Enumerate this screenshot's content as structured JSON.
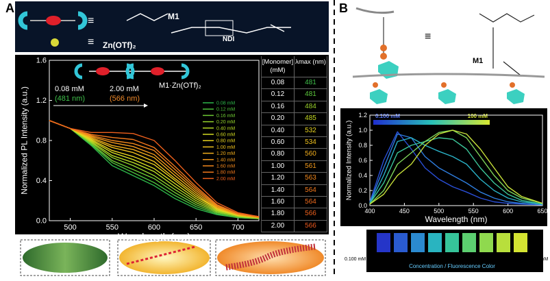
{
  "panel_a": {
    "label": "A",
    "header": {
      "m1": "M1",
      "ndi": "NDI",
      "zn": "Zn(OTf)₂"
    },
    "table": {
      "columns": [
        "[Monomer] (mM)",
        "λmax (nm)"
      ],
      "rows": [
        [
          "0.08",
          481
        ],
        [
          "0.12",
          481
        ],
        [
          "0.16",
          484
        ],
        [
          "0.20",
          485
        ],
        [
          "0.40",
          532
        ],
        [
          "0.60",
          534
        ],
        [
          "0.80",
          560
        ],
        [
          "1.00",
          561
        ],
        [
          "1.20",
          563
        ],
        [
          "1.40",
          564
        ],
        [
          "1.60",
          564
        ],
        [
          "1.80",
          566
        ],
        [
          "2.00",
          566
        ]
      ],
      "colors": [
        "#3fc04a",
        "#5cc83b",
        "#9ad12b",
        "#c4d823",
        "#e8d41f",
        "#f0c21d",
        "#f2ae1c",
        "#f39a1c",
        "#f3881c",
        "#f2781c",
        "#f06b1c",
        "#ee601c",
        "#ec581c"
      ]
    }
  },
  "panel_b": {
    "label": "B",
    "m1": "M1",
    "colorbar": {
      "low": "0.100 mM",
      "high": "100 mM",
      "caption": "Concentration / Fluorescence Color"
    }
  },
  "chart_data": [
    {
      "type": "line",
      "x_label": "Wavelength (nm)",
      "y_label": "Normalized PL Intensity (a.u.)",
      "annotations": [
        "0.08 mM",
        "(481 nm)",
        "2.00 mM",
        "(566 nm)",
        "M1·Zn(OTf)₂"
      ],
      "xlim": [
        475,
        725
      ],
      "xticks": [
        500,
        550,
        600,
        650,
        700
      ],
      "ylim": [
        0,
        1.6
      ],
      "yticks": [
        {
          "value": 0,
          "label": "0.0"
        },
        0.4,
        0.8,
        1.2,
        1.6
      ],
      "x": [
        475,
        500,
        525,
        550,
        575,
        600,
        625,
        650,
        675,
        700,
        725
      ],
      "series": [
        {
          "name": "0.08 mM",
          "color": "#2db84a",
          "values": [
            1,
            0.92,
            0.75,
            0.55,
            0.45,
            0.35,
            0.22,
            0.12,
            0.06,
            0.03,
            0.02
          ]
        },
        {
          "name": "0.12 mM",
          "color": "#4cc23c",
          "values": [
            1,
            0.92,
            0.76,
            0.58,
            0.48,
            0.38,
            0.25,
            0.14,
            0.07,
            0.03,
            0.02
          ]
        },
        {
          "name": "0.16 mM",
          "color": "#6fcb33",
          "values": [
            1,
            0.92,
            0.77,
            0.6,
            0.51,
            0.42,
            0.28,
            0.16,
            0.08,
            0.04,
            0.02
          ]
        },
        {
          "name": "0.20 mM",
          "color": "#95d42b",
          "values": [
            1,
            0.92,
            0.78,
            0.63,
            0.55,
            0.45,
            0.31,
            0.18,
            0.09,
            0.04,
            0.02
          ]
        },
        {
          "name": "0.40 mM",
          "color": "#b6da25",
          "values": [
            1,
            0.92,
            0.79,
            0.65,
            0.58,
            0.49,
            0.34,
            0.2,
            0.1,
            0.05,
            0.03
          ]
        },
        {
          "name": "0.60 mM",
          "color": "#d4dd22",
          "values": [
            1,
            0.92,
            0.8,
            0.68,
            0.61,
            0.52,
            0.37,
            0.22,
            0.11,
            0.05,
            0.03
          ]
        },
        {
          "name": "0.80 mM",
          "color": "#e8d41f",
          "values": [
            1,
            0.92,
            0.81,
            0.7,
            0.64,
            0.56,
            0.4,
            0.24,
            0.12,
            0.05,
            0.03
          ]
        },
        {
          "name": "1.00 mM",
          "color": "#f0c21d",
          "values": [
            1,
            0.92,
            0.82,
            0.73,
            0.68,
            0.59,
            0.42,
            0.26,
            0.12,
            0.06,
            0.03
          ]
        },
        {
          "name": "1.20 mM",
          "color": "#f2ae1c",
          "values": [
            1,
            0.92,
            0.83,
            0.75,
            0.71,
            0.63,
            0.45,
            0.28,
            0.13,
            0.06,
            0.03
          ]
        },
        {
          "name": "1.40 mM",
          "color": "#f39a1c",
          "values": [
            1,
            0.92,
            0.84,
            0.78,
            0.74,
            0.66,
            0.48,
            0.3,
            0.14,
            0.06,
            0.03
          ]
        },
        {
          "name": "1.60 mM",
          "color": "#f3881c",
          "values": [
            1,
            0.92,
            0.85,
            0.8,
            0.77,
            0.7,
            0.51,
            0.32,
            0.15,
            0.07,
            0.04
          ]
        },
        {
          "name": "1.80 mM",
          "color": "#f2781c",
          "values": [
            1,
            0.92,
            0.86,
            0.83,
            0.81,
            0.73,
            0.54,
            0.34,
            0.16,
            0.07,
            0.04
          ]
        },
        {
          "name": "2.00 mM",
          "color": "#ee601c",
          "values": [
            1,
            0.92,
            0.88,
            0.88,
            0.87,
            0.8,
            0.6,
            0.38,
            0.18,
            0.08,
            0.04
          ]
        }
      ]
    },
    {
      "type": "line",
      "x_label": "Wavelength (nm)",
      "y_label": "Normalized Intensity (a.u.)",
      "xlim": [
        400,
        650
      ],
      "xticks": [
        400,
        450,
        500,
        550,
        600,
        650
      ],
      "ylim": [
        0,
        1.2
      ],
      "yticks": [
        {
          "value": 0,
          "label": "0.0"
        },
        0.2,
        0.4,
        0.6,
        0.8,
        {
          "value": 1,
          "label": "1.0"
        },
        1.2
      ],
      "x": [
        400,
        420,
        440,
        460,
        480,
        500,
        520,
        540,
        560,
        580,
        600,
        620,
        650
      ],
      "series": [
        {
          "color": "#2a4fd8",
          "values": [
            0.05,
            0.6,
            0.98,
            0.75,
            0.5,
            0.35,
            0.25,
            0.18,
            0.1,
            0.05,
            0.03,
            0.02,
            0.01
          ]
        },
        {
          "color": "#2f7ee0",
          "values": [
            0.04,
            0.5,
            0.95,
            0.9,
            0.65,
            0.5,
            0.4,
            0.3,
            0.18,
            0.1,
            0.05,
            0.03,
            0.01
          ]
        },
        {
          "color": "#2ab3c8",
          "values": [
            0.03,
            0.4,
            0.85,
            0.9,
            0.8,
            0.72,
            0.65,
            0.55,
            0.35,
            0.2,
            0.1,
            0.05,
            0.02
          ]
        },
        {
          "color": "#3cc79a",
          "values": [
            0.03,
            0.3,
            0.7,
            0.8,
            0.85,
            0.9,
            0.88,
            0.75,
            0.5,
            0.3,
            0.15,
            0.07,
            0.02
          ]
        },
        {
          "color": "#7fd65a",
          "values": [
            0.02,
            0.2,
            0.55,
            0.7,
            0.85,
            0.97,
            1,
            0.9,
            0.65,
            0.4,
            0.2,
            0.1,
            0.03
          ]
        },
        {
          "color": "#c9e23a",
          "values": [
            0.02,
            0.15,
            0.4,
            0.55,
            0.8,
            0.95,
            1,
            0.95,
            0.75,
            0.5,
            0.25,
            0.12,
            0.03
          ]
        }
      ]
    }
  ]
}
